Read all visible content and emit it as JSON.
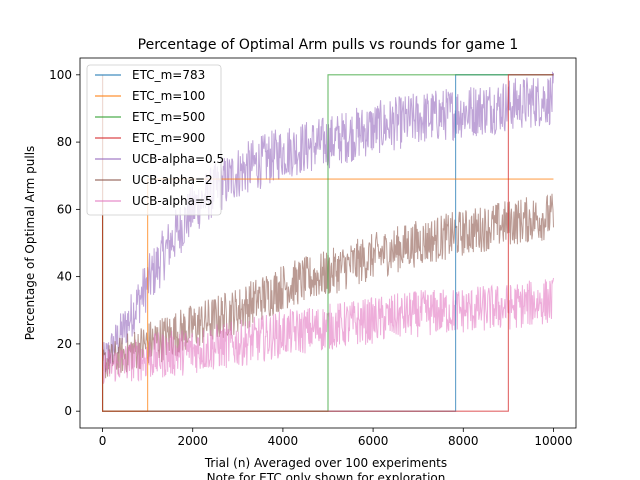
{
  "chart_data": {
    "type": "line",
    "title": "Percentage of Optimal Arm pulls vs rounds for game 1",
    "xlabel_line1": "Trial (n) Averaged over 100 experiments",
    "xlabel_line2": "Note for ETC only shown for exploration",
    "ylabel": "Percentage of Optimal Arm pulls",
    "xlim": [
      -500,
      10500
    ],
    "ylim": [
      -5,
      105
    ],
    "xticks": [
      0,
      2000,
      4000,
      6000,
      8000,
      10000
    ],
    "xtick_labels": [
      "0",
      "2000",
      "4000",
      "6000",
      "8000",
      "10000"
    ],
    "yticks": [
      0,
      20,
      40,
      60,
      80,
      100
    ],
    "ytick_labels": [
      "0",
      "20",
      "40",
      "60",
      "80",
      "100"
    ],
    "grid": false,
    "legend_position": "top-left",
    "series": [
      {
        "name": "ETC_m=783",
        "color": "#1f77b4",
        "kind": "etc",
        "explore_end": 7830,
        "start_value": 100,
        "explore_value": 0,
        "final_value": 100
      },
      {
        "name": "ETC_m=100",
        "color": "#ff7f0e",
        "kind": "etc",
        "explore_end": 1000,
        "start_value": 100,
        "explore_value": 0,
        "final_value": 69
      },
      {
        "name": "ETC_m=500",
        "color": "#2ca02c",
        "kind": "etc",
        "explore_end": 5000,
        "start_value": 100,
        "explore_value": 0,
        "final_value": 100
      },
      {
        "name": "ETC_m=900",
        "color": "#d62728",
        "kind": "etc",
        "explore_end": 9000,
        "start_value": 100,
        "explore_value": 0,
        "final_value": 100
      },
      {
        "name": "UCB-alpha=0.5",
        "color": "#9467bd",
        "kind": "noisy",
        "trend": [
          [
            0,
            14
          ],
          [
            500,
            25
          ],
          [
            1000,
            38
          ],
          [
            1500,
            50
          ],
          [
            2000,
            60
          ],
          [
            2500,
            66
          ],
          [
            3000,
            71
          ],
          [
            3500,
            74
          ],
          [
            4000,
            77
          ],
          [
            5000,
            80
          ],
          [
            6000,
            84
          ],
          [
            7000,
            87
          ],
          [
            8000,
            89
          ],
          [
            9000,
            91
          ],
          [
            10000,
            93
          ]
        ],
        "noise": 8
      },
      {
        "name": "UCB-alpha=2",
        "color": "#8c564b",
        "kind": "noisy",
        "trend": [
          [
            0,
            14
          ],
          [
            1000,
            20
          ],
          [
            2000,
            25
          ],
          [
            3000,
            30
          ],
          [
            4000,
            37
          ],
          [
            5000,
            41
          ],
          [
            6000,
            46
          ],
          [
            7000,
            50
          ],
          [
            8000,
            53
          ],
          [
            9000,
            56
          ],
          [
            10000,
            58
          ]
        ],
        "noise": 7
      },
      {
        "name": "UCB-alpha=5",
        "color": "#e377c2",
        "kind": "noisy",
        "trend": [
          [
            0,
            13
          ],
          [
            1000,
            16
          ],
          [
            2000,
            18
          ],
          [
            3000,
            20
          ],
          [
            4000,
            23
          ],
          [
            5000,
            25
          ],
          [
            6000,
            27
          ],
          [
            7000,
            29
          ],
          [
            8000,
            30
          ],
          [
            9000,
            31
          ],
          [
            10000,
            33
          ]
        ],
        "noise": 7
      }
    ]
  }
}
